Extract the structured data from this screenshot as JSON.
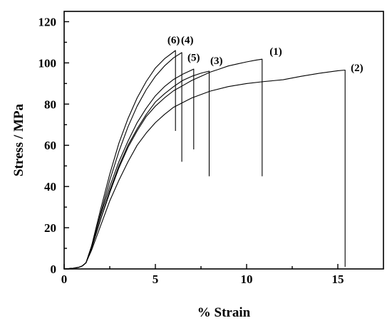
{
  "chart_data": {
    "type": "line",
    "xlabel": "% Strain",
    "ylabel": "Stress / MPa",
    "xlim": [
      0,
      17.5
    ],
    "ylim": [
      0,
      125
    ],
    "xticks": [
      0,
      5,
      10,
      15
    ],
    "yticks": [
      0,
      20,
      40,
      60,
      80,
      100,
      120
    ],
    "grid": false,
    "series": [
      {
        "name": "(1)",
        "x": [
          0,
          0.5,
          0.8,
          1.0,
          1.2,
          1.5,
          2.0,
          2.5,
          3.0,
          3.5,
          4.0,
          4.5,
          5.0,
          5.5,
          6.0,
          6.5,
          7.0,
          7.5,
          8.0,
          8.5,
          9.0,
          9.5,
          10.0,
          10.5,
          10.85,
          10.85
        ],
        "y": [
          0,
          0.3,
          0.8,
          1.5,
          3,
          10,
          24,
          37,
          49,
          59,
          67,
          74,
          79,
          83,
          86.5,
          89,
          91.5,
          93.5,
          95.5,
          97,
          98.5,
          99.5,
          100.5,
          101.3,
          101.8,
          45
        ]
      },
      {
        "name": "(2)",
        "x": [
          0,
          0.5,
          0.8,
          1.0,
          1.2,
          1.5,
          2.0,
          2.5,
          3.0,
          3.5,
          4.0,
          4.5,
          5.0,
          5.5,
          6.0,
          7.0,
          8.0,
          9.0,
          10.0,
          11.0,
          12.0,
          13.0,
          14.0,
          15.0,
          15.4,
          15.4
        ],
        "y": [
          0,
          0.3,
          0.8,
          1.5,
          3,
          9,
          21,
          33,
          43,
          52,
          60,
          66,
          71,
          75,
          78.5,
          83,
          86.3,
          88.5,
          90,
          91,
          91.8,
          93.5,
          95,
          96.2,
          96.5,
          1
        ]
      },
      {
        "name": "(3)",
        "x": [
          0,
          0.5,
          0.8,
          1.0,
          1.2,
          1.5,
          2.0,
          2.5,
          3.0,
          3.5,
          4.0,
          4.5,
          5.0,
          5.5,
          6.0,
          6.5,
          7.0,
          7.5,
          7.95,
          7.95
        ],
        "y": [
          0,
          0.3,
          0.8,
          1.5,
          3,
          10,
          24,
          38,
          50,
          60,
          68,
          75,
          81,
          85,
          88.5,
          91.5,
          93.5,
          95,
          96,
          45
        ]
      },
      {
        "name": "(4)",
        "x": [
          0,
          0.5,
          0.8,
          1.0,
          1.2,
          1.5,
          2.0,
          2.5,
          3.0,
          3.5,
          4.0,
          4.5,
          5.0,
          5.5,
          6.0,
          6.45,
          6.45
        ],
        "y": [
          0,
          0.3,
          0.8,
          1.5,
          3,
          10,
          27,
          43,
          57,
          69,
          79,
          87,
          93.5,
          98.5,
          102.5,
          105,
          52
        ]
      },
      {
        "name": "(5)",
        "x": [
          0,
          0.5,
          0.8,
          1.0,
          1.2,
          1.5,
          2.0,
          2.5,
          3.0,
          3.5,
          4.0,
          4.5,
          5.0,
          5.5,
          6.0,
          6.5,
          7.1,
          7.1
        ],
        "y": [
          0,
          0.3,
          0.8,
          1.5,
          3,
          11,
          26,
          40,
          52,
          62,
          71,
          78,
          84,
          88.5,
          92,
          94.5,
          97,
          58
        ]
      },
      {
        "name": "(6)",
        "x": [
          0,
          0.5,
          0.8,
          1.0,
          1.2,
          1.5,
          2.0,
          2.5,
          3.0,
          3.5,
          4.0,
          4.5,
          5.0,
          5.5,
          6.1,
          6.1
        ],
        "y": [
          0,
          0.3,
          0.8,
          1.5,
          3,
          11,
          29,
          46,
          61,
          73,
          83,
          91,
          97.5,
          102,
          106,
          67
        ]
      }
    ],
    "labels": [
      {
        "text": "(6)",
        "x": 6.0,
        "y": 109.5
      },
      {
        "text": "(4)",
        "x": 6.75,
        "y": 109.5
      },
      {
        "text": "(5)",
        "x": 7.1,
        "y": 101
      },
      {
        "text": "(3)",
        "x": 8.35,
        "y": 99.5
      },
      {
        "text": "(1)",
        "x": 11.6,
        "y": 104
      },
      {
        "text": "(2)",
        "x": 16.05,
        "y": 96
      }
    ]
  }
}
